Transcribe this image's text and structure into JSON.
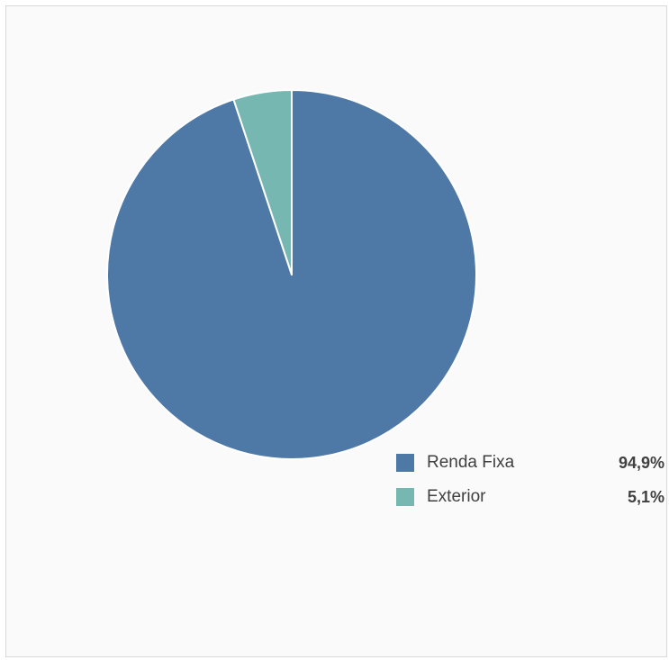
{
  "chart_data": {
    "type": "pie",
    "title": "",
    "slices": [
      {
        "label": "Renda Fixa",
        "value": 94.9,
        "display": "94,9%",
        "color": "#4e79a7"
      },
      {
        "label": "Exterior",
        "value": 5.1,
        "display": "5,1%",
        "color": "#76b7b2"
      }
    ],
    "legend_position": "bottom-right"
  }
}
